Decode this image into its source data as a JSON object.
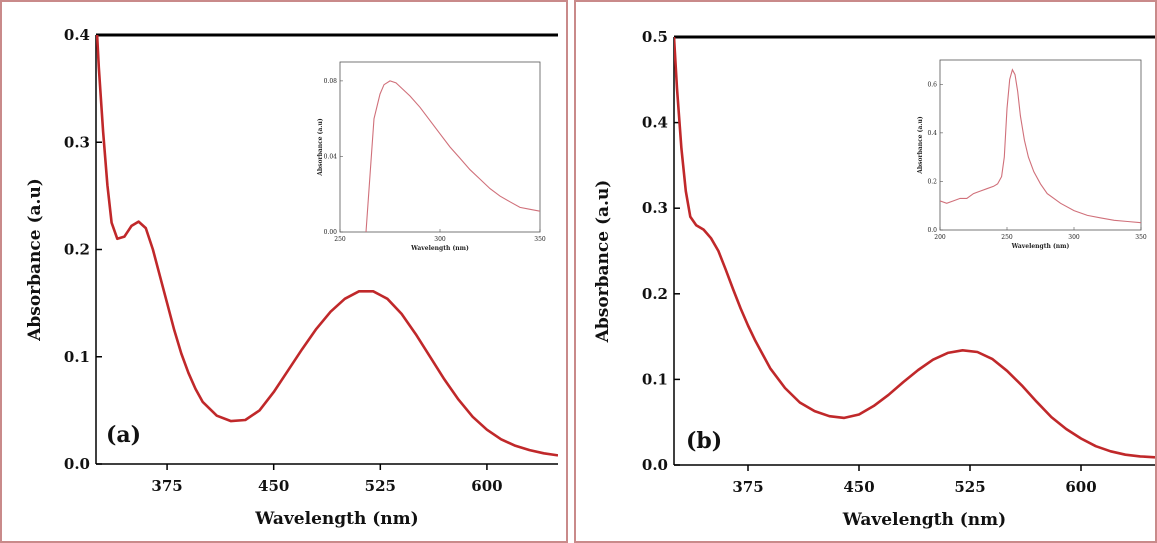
{
  "colors": {
    "line": "#c0282a",
    "inset_line": "#d0707a",
    "panel_border": "#c98a8a",
    "axis": "#000000"
  },
  "chart_data": [
    {
      "type": "line",
      "panel_label": "(a)",
      "xlabel": "Wavelength (nm)",
      "ylabel": "Absorbance (a.u)",
      "xlim": [
        325,
        650
      ],
      "ylim": [
        0.0,
        0.4
      ],
      "xticks": [
        375,
        450,
        525,
        600
      ],
      "yticks": [
        0.0,
        0.1,
        0.2,
        0.3,
        0.4
      ],
      "xtick_labels": [
        "375",
        "450",
        "525",
        "600"
      ],
      "ytick_labels": [
        "0.0",
        "0.1",
        "0.2",
        "0.3",
        "0.4"
      ],
      "series": [
        {
          "x": [
            325,
            327,
            330,
            333,
            336,
            340,
            345,
            350,
            355,
            360,
            365,
            370,
            375,
            380,
            385,
            390,
            395,
            400,
            410,
            420,
            430,
            440,
            450,
            460,
            470,
            480,
            490,
            500,
            510,
            520,
            530,
            540,
            550,
            560,
            570,
            580,
            590,
            600,
            610,
            620,
            630,
            640,
            650
          ],
          "y": [
            0.42,
            0.37,
            0.31,
            0.26,
            0.225,
            0.21,
            0.212,
            0.222,
            0.226,
            0.22,
            0.2,
            0.175,
            0.15,
            0.125,
            0.103,
            0.085,
            0.07,
            0.058,
            0.045,
            0.04,
            0.041,
            0.05,
            0.067,
            0.087,
            0.107,
            0.126,
            0.142,
            0.154,
            0.161,
            0.161,
            0.154,
            0.14,
            0.121,
            0.1,
            0.079,
            0.06,
            0.044,
            0.032,
            0.023,
            0.017,
            0.013,
            0.01,
            0.008
          ]
        }
      ],
      "inset": {
        "xlabel": "Wavelength (nm)",
        "ylabel": "Absorbance (a.u)",
        "xlim": [
          250,
          350
        ],
        "ylim": [
          0.0,
          0.09
        ],
        "xticks": [
          250,
          300,
          350
        ],
        "yticks": [
          0.0,
          0.04,
          0.08
        ],
        "xtick_labels": [
          "250",
          "300",
          "350"
        ],
        "ytick_labels": [
          "0.00",
          "0.04",
          "0.08"
        ],
        "series": [
          {
            "x": [
              263,
              265,
              267,
              270,
              272,
              275,
              278,
              280,
              285,
              290,
              295,
              300,
              305,
              310,
              315,
              320,
              325,
              330,
              335,
              340,
              345,
              350
            ],
            "y": [
              0.0,
              0.03,
              0.06,
              0.073,
              0.078,
              0.08,
              0.079,
              0.077,
              0.072,
              0.066,
              0.059,
              0.052,
              0.045,
              0.039,
              0.033,
              0.028,
              0.023,
              0.019,
              0.016,
              0.013,
              0.012,
              0.011
            ]
          }
        ]
      }
    },
    {
      "type": "line",
      "panel_label": "(b)",
      "xlabel": "Wavelength (nm)",
      "ylabel": "Absorbance (a.u)",
      "xlim": [
        325,
        650
      ],
      "ylim": [
        0.0,
        0.5
      ],
      "xticks": [
        375,
        450,
        525,
        600
      ],
      "yticks": [
        0.0,
        0.1,
        0.2,
        0.3,
        0.4,
        0.5
      ],
      "xtick_labels": [
        "375",
        "450",
        "525",
        "600"
      ],
      "ytick_labels": [
        "0.0",
        "0.1",
        "0.2",
        "0.3",
        "0.4",
        "0.5"
      ],
      "series": [
        {
          "x": [
            325,
            327,
            330,
            333,
            336,
            340,
            345,
            350,
            355,
            360,
            365,
            370,
            375,
            380,
            390,
            400,
            410,
            420,
            430,
            440,
            450,
            460,
            470,
            480,
            490,
            500,
            510,
            520,
            530,
            540,
            550,
            560,
            570,
            580,
            590,
            600,
            610,
            620,
            630,
            640,
            650
          ],
          "y": [
            0.5,
            0.44,
            0.37,
            0.32,
            0.29,
            0.28,
            0.275,
            0.265,
            0.25,
            0.228,
            0.205,
            0.183,
            0.163,
            0.145,
            0.113,
            0.09,
            0.073,
            0.063,
            0.057,
            0.055,
            0.059,
            0.069,
            0.082,
            0.097,
            0.111,
            0.123,
            0.131,
            0.134,
            0.132,
            0.124,
            0.11,
            0.093,
            0.074,
            0.056,
            0.042,
            0.031,
            0.022,
            0.016,
            0.012,
            0.01,
            0.009
          ]
        }
      ],
      "inset": {
        "xlabel": "Wavelength (nm)",
        "ylabel": "Absorbance (a.u)",
        "xlim": [
          200,
          350
        ],
        "ylim": [
          0.0,
          0.7
        ],
        "xticks": [
          200,
          250,
          300,
          350
        ],
        "yticks": [
          0.0,
          0.2,
          0.4,
          0.6
        ],
        "xtick_labels": [
          "200",
          "250",
          "300",
          "350"
        ],
        "ytick_labels": [
          "0.0",
          "0.2",
          "0.4",
          "0.6"
        ],
        "series": [
          {
            "x": [
              200,
              205,
              210,
              215,
              220,
              225,
              230,
              235,
              240,
              243,
              246,
              248,
              250,
              252,
              254,
              256,
              258,
              260,
              263,
              266,
              270,
              275,
              280,
              290,
              300,
              310,
              320,
              330,
              340,
              350
            ],
            "y": [
              0.12,
              0.11,
              0.12,
              0.13,
              0.13,
              0.15,
              0.16,
              0.17,
              0.18,
              0.19,
              0.22,
              0.3,
              0.5,
              0.62,
              0.66,
              0.64,
              0.57,
              0.47,
              0.37,
              0.3,
              0.24,
              0.19,
              0.15,
              0.11,
              0.08,
              0.06,
              0.05,
              0.04,
              0.035,
              0.03
            ]
          }
        ]
      }
    }
  ]
}
